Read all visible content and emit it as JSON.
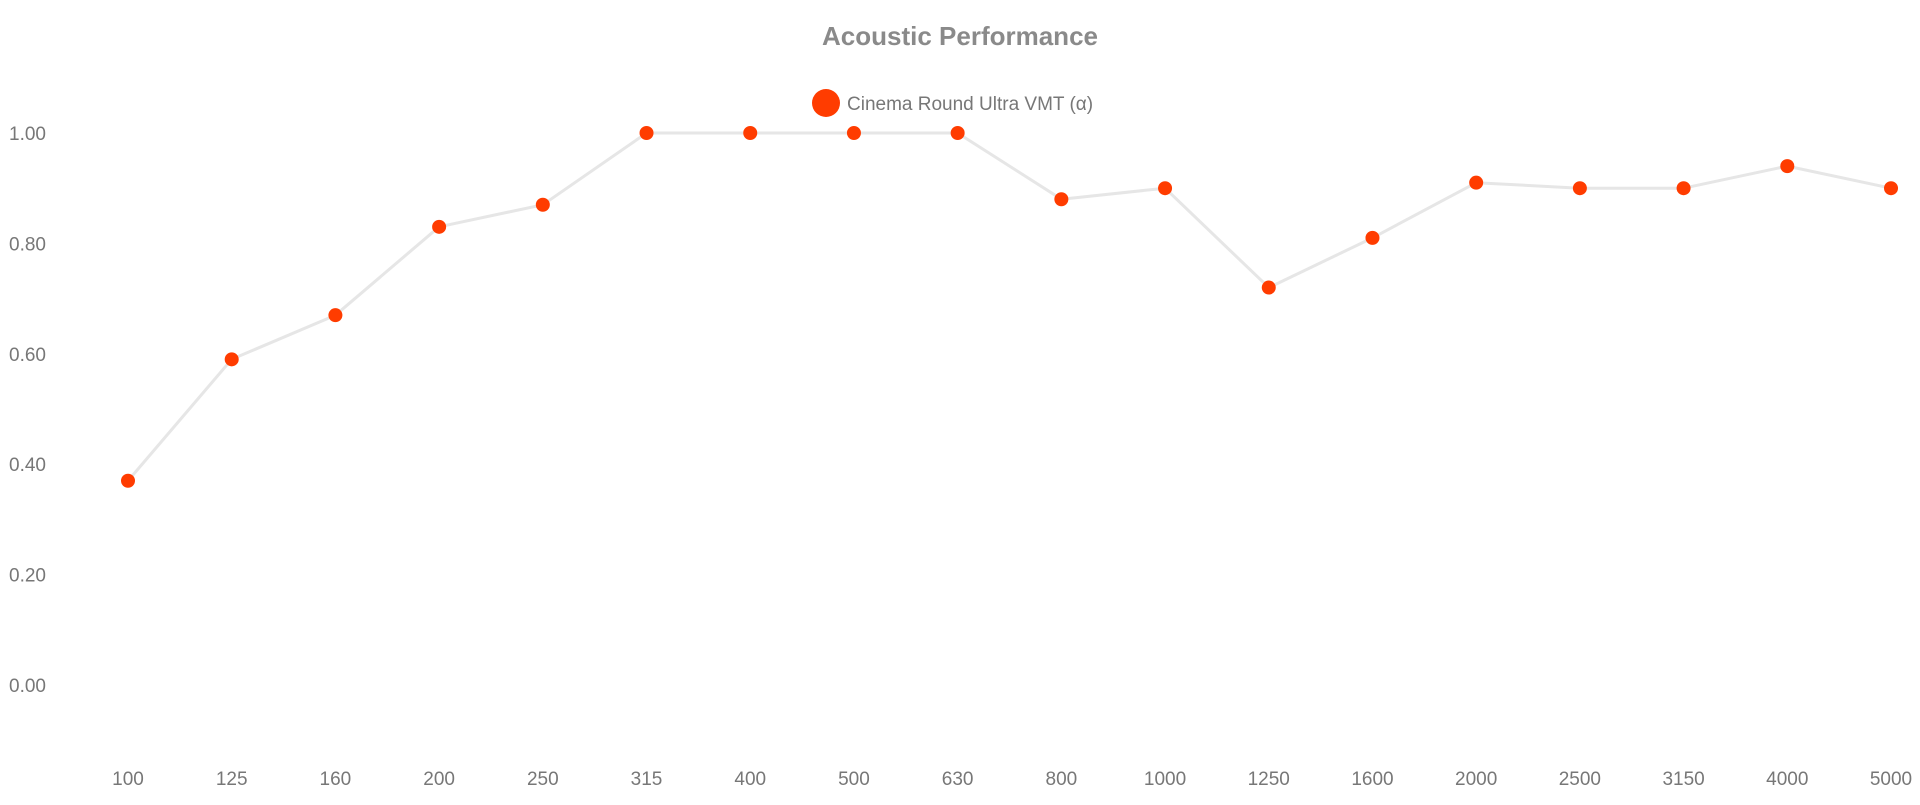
{
  "chart_data": {
    "type": "line",
    "title": "Acoustic Performance",
    "xlabel": "",
    "ylabel": "",
    "categories": [
      "100",
      "125",
      "160",
      "200",
      "250",
      "315",
      "400",
      "500",
      "630",
      "800",
      "1000",
      "1250",
      "1600",
      "2000",
      "2500",
      "3150",
      "4000",
      "5000"
    ],
    "series": [
      {
        "name": "Cinema Round Ultra VMT (α)",
        "values": [
          0.37,
          0.59,
          0.67,
          0.83,
          0.87,
          1.0,
          1.0,
          1.0,
          1.0,
          0.88,
          0.9,
          0.72,
          0.81,
          0.91,
          0.9,
          0.9,
          0.94,
          0.9
        ],
        "marker_color": "#ff3c00",
        "line_color": "#e6e6e6"
      }
    ],
    "ylim": [
      -0.1,
      1.1
    ],
    "yticks": [
      0.0,
      0.2,
      0.4,
      0.6,
      0.8,
      1.0
    ],
    "ytick_labels": [
      "0.00",
      "0.20",
      "0.40",
      "0.60",
      "0.80",
      "1.00"
    ],
    "grid": false,
    "legend_position": "top-center"
  }
}
